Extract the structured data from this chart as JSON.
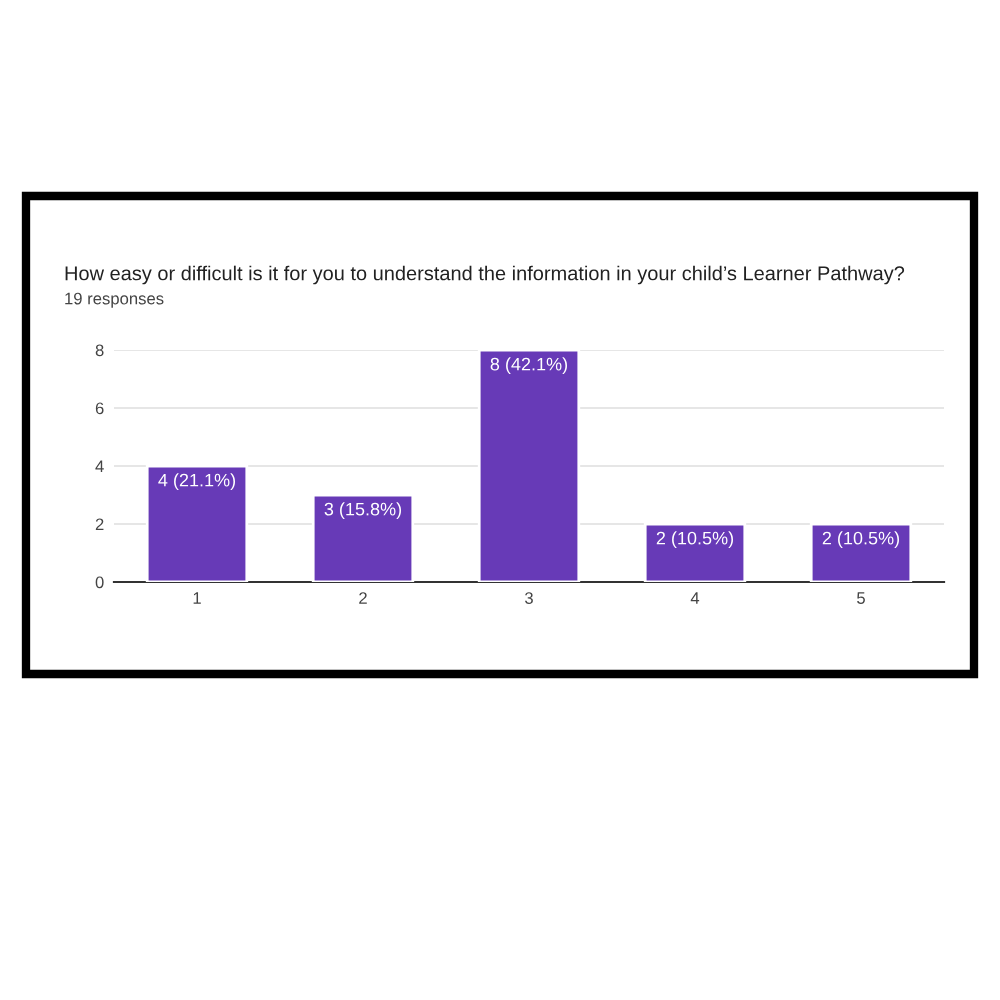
{
  "chart_data": {
    "type": "bar",
    "title": "How easy or difficult is it for you to understand the information in your child’s Learner Pathway?",
    "subtitle": "19 responses",
    "categories": [
      "1",
      "2",
      "3",
      "4",
      "5"
    ],
    "values": [
      4,
      3,
      8,
      2,
      2
    ],
    "value_labels": [
      "4 (21.1%)",
      "3 (15.8%)",
      "8 (42.1%)",
      "2 (10.5%)",
      "2 (10.5%)"
    ],
    "color": "#673ab7",
    "ylim": [
      0,
      8
    ],
    "yticks": [
      0,
      2,
      4,
      6,
      8
    ],
    "grid": "y"
  }
}
